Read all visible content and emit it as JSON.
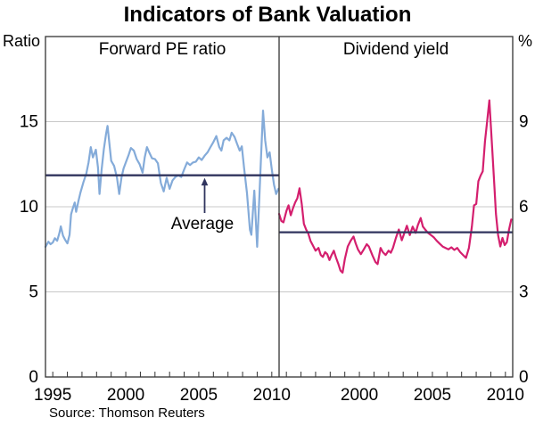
{
  "page": {
    "title": "Indicators of Bank Valuation",
    "source": "Source: Thomson Reuters"
  },
  "colors": {
    "background": "#ffffff",
    "forward_pe_line": "#84abd9",
    "dividend_yield_line": "#d41f6e",
    "average_line": "#30345e",
    "gridline": "#c8c8c8",
    "frame": "#333333",
    "text": "#000000"
  },
  "chart_data": [
    {
      "type": "line",
      "panel": "left",
      "title": "Forward PE ratio",
      "unit_label": "Ratio",
      "ylim": [
        0,
        20
      ],
      "yticks": [
        0,
        5,
        10,
        15
      ],
      "xlim": [
        1994.5,
        2010.5
      ],
      "xticks_labeled": [
        1995,
        2000,
        2005,
        2010
      ],
      "xticks_minor_every": 1,
      "grid": true,
      "average": 11.85,
      "average_label": "Average",
      "series": [
        {
          "name": "Forward PE ratio",
          "color_key": "forward_pe_line",
          "points": [
            [
              1994.5,
              7.65
            ],
            [
              1994.7,
              7.95
            ],
            [
              1994.85,
              7.8
            ],
            [
              1995.0,
              7.9
            ],
            [
              1995.15,
              8.15
            ],
            [
              1995.3,
              8.0
            ],
            [
              1995.45,
              8.45
            ],
            [
              1995.55,
              8.85
            ],
            [
              1995.7,
              8.3
            ],
            [
              1995.85,
              8.05
            ],
            [
              1996.0,
              7.85
            ],
            [
              1996.15,
              8.35
            ],
            [
              1996.25,
              9.55
            ],
            [
              1996.35,
              9.85
            ],
            [
              1996.5,
              10.25
            ],
            [
              1996.6,
              9.7
            ],
            [
              1996.75,
              10.3
            ],
            [
              1996.9,
              10.85
            ],
            [
              1997.1,
              11.45
            ],
            [
              1997.3,
              11.95
            ],
            [
              1997.45,
              12.6
            ],
            [
              1997.6,
              13.5
            ],
            [
              1997.75,
              12.9
            ],
            [
              1997.95,
              13.35
            ],
            [
              1998.1,
              12.3
            ],
            [
              1998.2,
              10.75
            ],
            [
              1998.35,
              12.2
            ],
            [
              1998.5,
              13.4
            ],
            [
              1998.65,
              14.3
            ],
            [
              1998.75,
              14.75
            ],
            [
              1998.9,
              13.5
            ],
            [
              1999.0,
              12.7
            ],
            [
              1999.2,
              12.4
            ],
            [
              1999.4,
              11.7
            ],
            [
              1999.55,
              10.75
            ],
            [
              1999.7,
              11.7
            ],
            [
              1999.85,
              12.25
            ],
            [
              2000.0,
              12.6
            ],
            [
              2000.2,
              13.05
            ],
            [
              2000.35,
              13.45
            ],
            [
              2000.55,
              13.3
            ],
            [
              2000.75,
              12.8
            ],
            [
              2000.95,
              12.5
            ],
            [
              2001.15,
              12.0
            ],
            [
              2001.3,
              12.9
            ],
            [
              2001.45,
              13.5
            ],
            [
              2001.6,
              13.2
            ],
            [
              2001.8,
              12.85
            ],
            [
              2002.0,
              12.8
            ],
            [
              2002.2,
              12.55
            ],
            [
              2002.4,
              11.4
            ],
            [
              2002.6,
              10.9
            ],
            [
              2002.8,
              11.7
            ],
            [
              2003.0,
              11.05
            ],
            [
              2003.2,
              11.55
            ],
            [
              2003.4,
              11.75
            ],
            [
              2003.6,
              11.85
            ],
            [
              2003.8,
              11.75
            ],
            [
              2004.0,
              12.2
            ],
            [
              2004.2,
              12.6
            ],
            [
              2004.4,
              12.45
            ],
            [
              2004.6,
              12.6
            ],
            [
              2004.8,
              12.65
            ],
            [
              2005.0,
              12.9
            ],
            [
              2005.2,
              12.75
            ],
            [
              2005.4,
              13.0
            ],
            [
              2005.6,
              13.2
            ],
            [
              2005.8,
              13.5
            ],
            [
              2006.0,
              13.8
            ],
            [
              2006.2,
              14.15
            ],
            [
              2006.4,
              13.5
            ],
            [
              2006.55,
              13.3
            ],
            [
              2006.7,
              13.9
            ],
            [
              2006.9,
              14.05
            ],
            [
              2007.1,
              13.9
            ],
            [
              2007.25,
              14.35
            ],
            [
              2007.45,
              14.1
            ],
            [
              2007.6,
              13.75
            ],
            [
              2007.8,
              13.3
            ],
            [
              2007.95,
              13.55
            ],
            [
              2008.1,
              12.3
            ],
            [
              2008.3,
              10.8
            ],
            [
              2008.5,
              8.65
            ],
            [
              2008.6,
              8.35
            ],
            [
              2008.8,
              10.95
            ],
            [
              2009.0,
              7.65
            ],
            [
              2009.15,
              10.6
            ],
            [
              2009.3,
              13.6
            ],
            [
              2009.4,
              15.65
            ],
            [
              2009.55,
              13.9
            ],
            [
              2009.7,
              12.9
            ],
            [
              2009.85,
              13.2
            ],
            [
              2010.0,
              12.2
            ],
            [
              2010.15,
              11.3
            ],
            [
              2010.3,
              10.75
            ],
            [
              2010.45,
              11.05
            ]
          ]
        }
      ]
    },
    {
      "type": "line",
      "panel": "right",
      "title": "Dividend yield",
      "unit_label": "%",
      "ylim": [
        0,
        12
      ],
      "yticks": [
        0,
        3,
        6,
        9
      ],
      "xlim": [
        1994.5,
        2010.5
      ],
      "xticks_labeled": [
        2000,
        2005,
        2010
      ],
      "xticks_minor_every": 1,
      "grid": true,
      "average": 5.1,
      "average_label": "",
      "series": [
        {
          "name": "Dividend yield",
          "color_key": "dividend_yield_line",
          "points": [
            [
              1994.5,
              5.75
            ],
            [
              1994.65,
              5.5
            ],
            [
              1994.8,
              5.45
            ],
            [
              1995.0,
              5.85
            ],
            [
              1995.15,
              6.05
            ],
            [
              1995.3,
              5.7
            ],
            [
              1995.45,
              5.95
            ],
            [
              1995.6,
              6.15
            ],
            [
              1995.75,
              6.3
            ],
            [
              1995.9,
              6.65
            ],
            [
              1996.05,
              6.1
            ],
            [
              1996.2,
              5.4
            ],
            [
              1996.35,
              5.2
            ],
            [
              1996.5,
              5.05
            ],
            [
              1996.65,
              4.8
            ],
            [
              1996.8,
              4.65
            ],
            [
              1997.0,
              4.45
            ],
            [
              1997.2,
              4.55
            ],
            [
              1997.35,
              4.3
            ],
            [
              1997.5,
              4.23
            ],
            [
              1997.65,
              4.4
            ],
            [
              1997.8,
              4.33
            ],
            [
              1997.95,
              4.12
            ],
            [
              1998.1,
              4.3
            ],
            [
              1998.25,
              4.45
            ],
            [
              1998.4,
              4.2
            ],
            [
              1998.55,
              4.0
            ],
            [
              1998.7,
              3.75
            ],
            [
              1998.85,
              3.68
            ],
            [
              1999.0,
              4.15
            ],
            [
              1999.2,
              4.6
            ],
            [
              1999.4,
              4.8
            ],
            [
              1999.6,
              4.95
            ],
            [
              1999.75,
              4.7
            ],
            [
              1999.9,
              4.5
            ],
            [
              2000.1,
              4.33
            ],
            [
              2000.3,
              4.5
            ],
            [
              2000.5,
              4.68
            ],
            [
              2000.65,
              4.6
            ],
            [
              2000.9,
              4.28
            ],
            [
              2001.1,
              4.05
            ],
            [
              2001.25,
              3.98
            ],
            [
              2001.45,
              4.55
            ],
            [
              2001.6,
              4.4
            ],
            [
              2001.8,
              4.3
            ],
            [
              2002.0,
              4.45
            ],
            [
              2002.15,
              4.38
            ],
            [
              2002.3,
              4.55
            ],
            [
              2002.5,
              4.9
            ],
            [
              2002.7,
              5.2
            ],
            [
              2002.9,
              4.82
            ],
            [
              2003.1,
              5.1
            ],
            [
              2003.25,
              5.33
            ],
            [
              2003.45,
              5.0
            ],
            [
              2003.65,
              5.3
            ],
            [
              2003.85,
              5.08
            ],
            [
              2004.0,
              5.35
            ],
            [
              2004.2,
              5.6
            ],
            [
              2004.35,
              5.3
            ],
            [
              2004.5,
              5.2
            ],
            [
              2004.7,
              5.08
            ],
            [
              2004.9,
              5.0
            ],
            [
              2005.1,
              4.92
            ],
            [
              2005.3,
              4.8
            ],
            [
              2005.5,
              4.7
            ],
            [
              2005.7,
              4.6
            ],
            [
              2005.9,
              4.55
            ],
            [
              2006.1,
              4.5
            ],
            [
              2006.3,
              4.57
            ],
            [
              2006.5,
              4.48
            ],
            [
              2006.7,
              4.55
            ],
            [
              2006.9,
              4.4
            ],
            [
              2007.1,
              4.3
            ],
            [
              2007.3,
              4.2
            ],
            [
              2007.5,
              4.55
            ],
            [
              2007.7,
              5.3
            ],
            [
              2007.85,
              6.05
            ],
            [
              2008.0,
              6.1
            ],
            [
              2008.15,
              6.9
            ],
            [
              2008.3,
              7.1
            ],
            [
              2008.45,
              7.25
            ],
            [
              2008.6,
              8.3
            ],
            [
              2008.75,
              9.0
            ],
            [
              2008.9,
              9.75
            ],
            [
              2009.0,
              8.9
            ],
            [
              2009.1,
              8.0
            ],
            [
              2009.25,
              6.7
            ],
            [
              2009.35,
              5.75
            ],
            [
              2009.5,
              5.0
            ],
            [
              2009.65,
              4.6
            ],
            [
              2009.8,
              4.9
            ],
            [
              2009.95,
              4.65
            ],
            [
              2010.1,
              4.75
            ],
            [
              2010.25,
              5.2
            ],
            [
              2010.4,
              5.55
            ]
          ]
        }
      ]
    }
  ]
}
